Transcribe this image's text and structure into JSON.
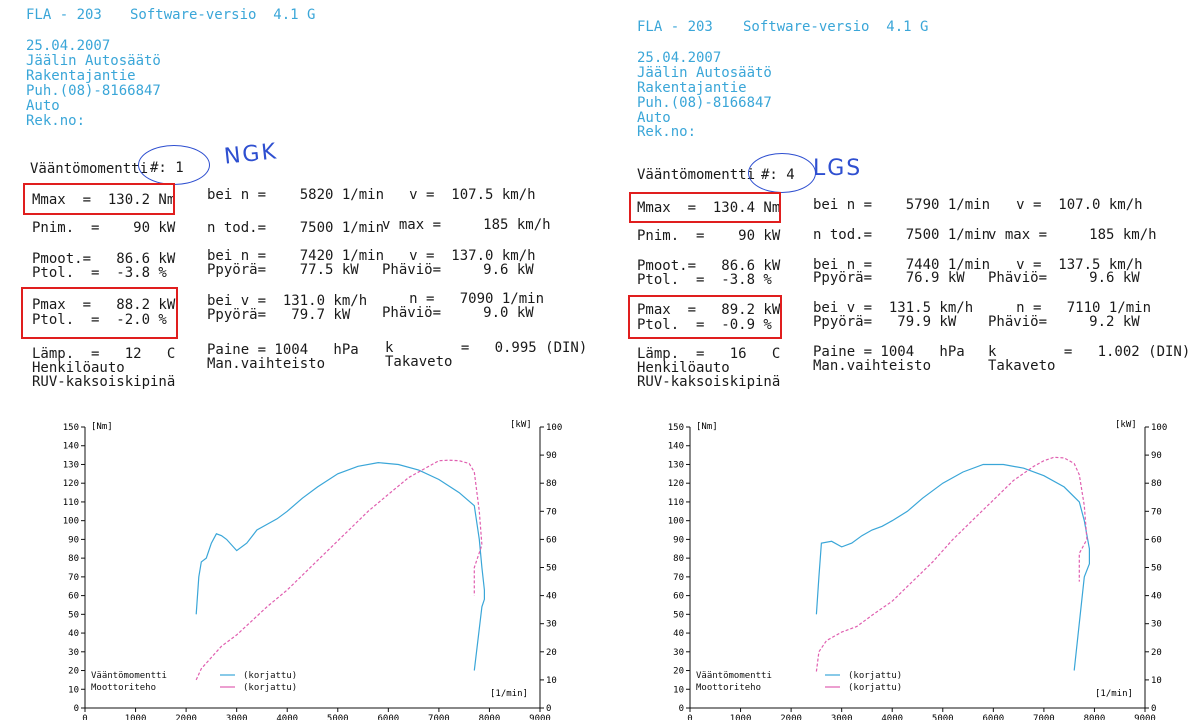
{
  "reports": [
    {
      "id": "left",
      "header": {
        "title": "FLA - 203",
        "software": "Software-versio  4.1 G",
        "lines": [
          "25.04.2007",
          "Jäälin Autosäätö",
          "Rakentajantie",
          "Puh.(08)-8166847",
          "Auto",
          "Rek.no:"
        ]
      },
      "run": {
        "label": "Vääntömomentti",
        "number": "#: 1",
        "handwriting": "NGK"
      },
      "rows": [
        [
          "Mmax  =  130.2 Nm",
          "bei n =    5820 1/min",
          "     v =  107.5 km/h"
        ],
        [
          "Pnim.  =    90 kW",
          "n tod.=    7500 1/min",
          "v max =     185 km/h"
        ],
        [
          "Pmoot.=   86.6 kW",
          "bei n =    7420 1/min",
          "     v =  137.0 km/h"
        ],
        [
          "Ptol.  =  -3.8 %",
          "Ppyörä=    77.5 kW",
          "Phäviö=     9.6 kW"
        ],
        [
          "Pmax  =   88.2 kW",
          "bei v =  131.0 km/h",
          "     n =   7090 1/min"
        ],
        [
          "Ptol.  =  -2.0 %",
          "Ppyörä=   79.7 kW",
          "Phäviö=     9.0 kW"
        ],
        [
          "Lämp.  =   12   C",
          "Paine = 1004   hPa",
          "k        =   0.995 (DIN)"
        ],
        [
          "Henkilöauto",
          "Man.vaihteisto",
          "Takaveto"
        ],
        [
          "RUV-kaksoiskipinä",
          "",
          ""
        ]
      ]
    },
    {
      "id": "right",
      "header": {
        "title": "FLA - 203",
        "software": "Software-versio  4.1 G",
        "lines": [
          "25.04.2007",
          "Jäälin Autosäätö",
          "Rakentajantie",
          "Puh.(08)-8166847",
          "Auto",
          "Rek.no:"
        ]
      },
      "run": {
        "label": "Vääntömomentti",
        "number": "#: 4",
        "handwriting": "LGS"
      },
      "rows": [
        [
          "Mmax  =  130.4 Nm",
          "bei n =    5790 1/min",
          "     v =  107.0 km/h"
        ],
        [
          "Pnim.  =    90 kW",
          "n tod.=    7500 1/min",
          "v max =     185 km/h"
        ],
        [
          "Pmoot.=   86.6 kW",
          "bei n =    7440 1/min",
          "     v =  137.5 km/h"
        ],
        [
          "Ptol.  =  -3.8 %",
          "Ppyörä=    76.9 kW",
          "Phäviö=     9.6 kW"
        ],
        [
          "Pmax  =   89.2 kW",
          "bei v =  131.5 km/h",
          "     n =   7110 1/min"
        ],
        [
          "Ptol.  =  -0.9 %",
          "Ppyörä=   79.9 kW",
          "Phäviö=     9.2 kW"
        ],
        [
          "Lämp.  =   16   C",
          "Paine = 1004   hPa",
          "k        =   1.002 (DIN)"
        ],
        [
          "Henkilöauto",
          "Man.vaihteisto",
          "Takaveto"
        ],
        [
          "RUV-kaksoiskipinä",
          "",
          ""
        ]
      ]
    }
  ],
  "colors": {
    "header": "#3aa6d8",
    "torque": "#3aa6d8",
    "power": "#e05fb0",
    "box": "#e01e1e",
    "ink": "#2e4fd0"
  },
  "chart_data": [
    {
      "type": "line",
      "ylabel_left": "[Nm]",
      "ylabel_right": "[kW]",
      "xlabel": "[1/min]",
      "xlim": [
        0,
        9000
      ],
      "ylim_left": [
        0,
        150
      ],
      "ylim_right": [
        0,
        100
      ],
      "xticks": [
        0,
        1000,
        2000,
        3000,
        4000,
        5000,
        6000,
        7000,
        8000,
        9000
      ],
      "yticks_left": [
        0,
        10,
        20,
        30,
        40,
        50,
        60,
        70,
        80,
        90,
        100,
        110,
        120,
        130,
        140,
        150
      ],
      "yticks_right": [
        0,
        10,
        20,
        30,
        40,
        50,
        60,
        70,
        80,
        90,
        100
      ],
      "legend": [
        {
          "name": "Vääntömomentti",
          "note": "(korjattu)"
        },
        {
          "name": "Moottoriteho",
          "note": "(korjattu)"
        }
      ],
      "series": [
        {
          "name": "Vääntömomentti",
          "axis": "left",
          "x": [
            2200,
            2250,
            2300,
            2400,
            2500,
            2600,
            2700,
            2800,
            3000,
            3200,
            3400,
            3600,
            3800,
            4000,
            4300,
            4600,
            5000,
            5400,
            5800,
            6200,
            6600,
            7000,
            7400,
            7700,
            7800,
            7850,
            7900,
            7900,
            7850,
            7700
          ],
          "y": [
            50,
            70,
            78,
            80,
            88,
            93,
            92,
            90,
            84,
            88,
            95,
            98,
            101,
            105,
            112,
            118,
            125,
            129,
            131,
            130,
            127,
            122,
            115,
            108,
            90,
            75,
            63,
            58,
            54,
            20
          ]
        },
        {
          "name": "Moottoriteho",
          "axis": "right",
          "x": [
            2200,
            2300,
            2500,
            2700,
            3000,
            3300,
            3600,
            4000,
            4400,
            4800,
            5200,
            5600,
            6000,
            6400,
            6800,
            7000,
            7200,
            7400,
            7600,
            7700,
            7800,
            7850,
            7700,
            7700
          ],
          "y": [
            10,
            14,
            18,
            22,
            26,
            31,
            36,
            42,
            49,
            56,
            63,
            70,
            76,
            82,
            86,
            88,
            88.2,
            88,
            87,
            84,
            70,
            58,
            50,
            40
          ]
        }
      ]
    },
    {
      "type": "line",
      "ylabel_left": "[Nm]",
      "ylabel_right": "[kW]",
      "xlabel": "[1/min]",
      "xlim": [
        0,
        9000
      ],
      "ylim_left": [
        0,
        150
      ],
      "ylim_right": [
        0,
        100
      ],
      "xticks": [
        0,
        1000,
        2000,
        3000,
        4000,
        5000,
        6000,
        7000,
        8000,
        9000
      ],
      "yticks_left": [
        0,
        10,
        20,
        30,
        40,
        50,
        60,
        70,
        80,
        90,
        100,
        110,
        120,
        130,
        140,
        150
      ],
      "yticks_right": [
        0,
        10,
        20,
        30,
        40,
        50,
        60,
        70,
        80,
        90,
        100
      ],
      "legend": [
        {
          "name": "Vääntömomentti",
          "note": "(korjattu)"
        },
        {
          "name": "Moottoriteho",
          "note": "(korjattu)"
        }
      ],
      "series": [
        {
          "name": "Vääntömomentti",
          "axis": "left",
          "x": [
            2500,
            2550,
            2600,
            2800,
            3000,
            3200,
            3400,
            3600,
            3800,
            4000,
            4300,
            4600,
            5000,
            5400,
            5800,
            6200,
            6600,
            7000,
            7400,
            7700,
            7800,
            7900,
            7900,
            7800,
            7600
          ],
          "y": [
            50,
            70,
            88,
            89,
            86,
            88,
            92,
            95,
            97,
            100,
            105,
            112,
            120,
            126,
            130,
            130,
            128,
            124,
            118,
            110,
            100,
            85,
            77,
            70,
            20
          ]
        },
        {
          "name": "Moottoriteho",
          "axis": "right",
          "x": [
            2500,
            2550,
            2700,
            3000,
            3300,
            3600,
            4000,
            4400,
            4800,
            5200,
            5600,
            6000,
            6400,
            6800,
            7000,
            7200,
            7400,
            7600,
            7700,
            7800,
            7850,
            7700,
            7700
          ],
          "y": [
            13,
            20,
            24,
            27,
            29,
            33,
            38,
            45,
            52,
            60,
            67,
            74,
            81,
            86,
            88,
            89.2,
            89,
            87,
            83,
            72,
            60,
            55,
            45
          ]
        }
      ]
    }
  ]
}
